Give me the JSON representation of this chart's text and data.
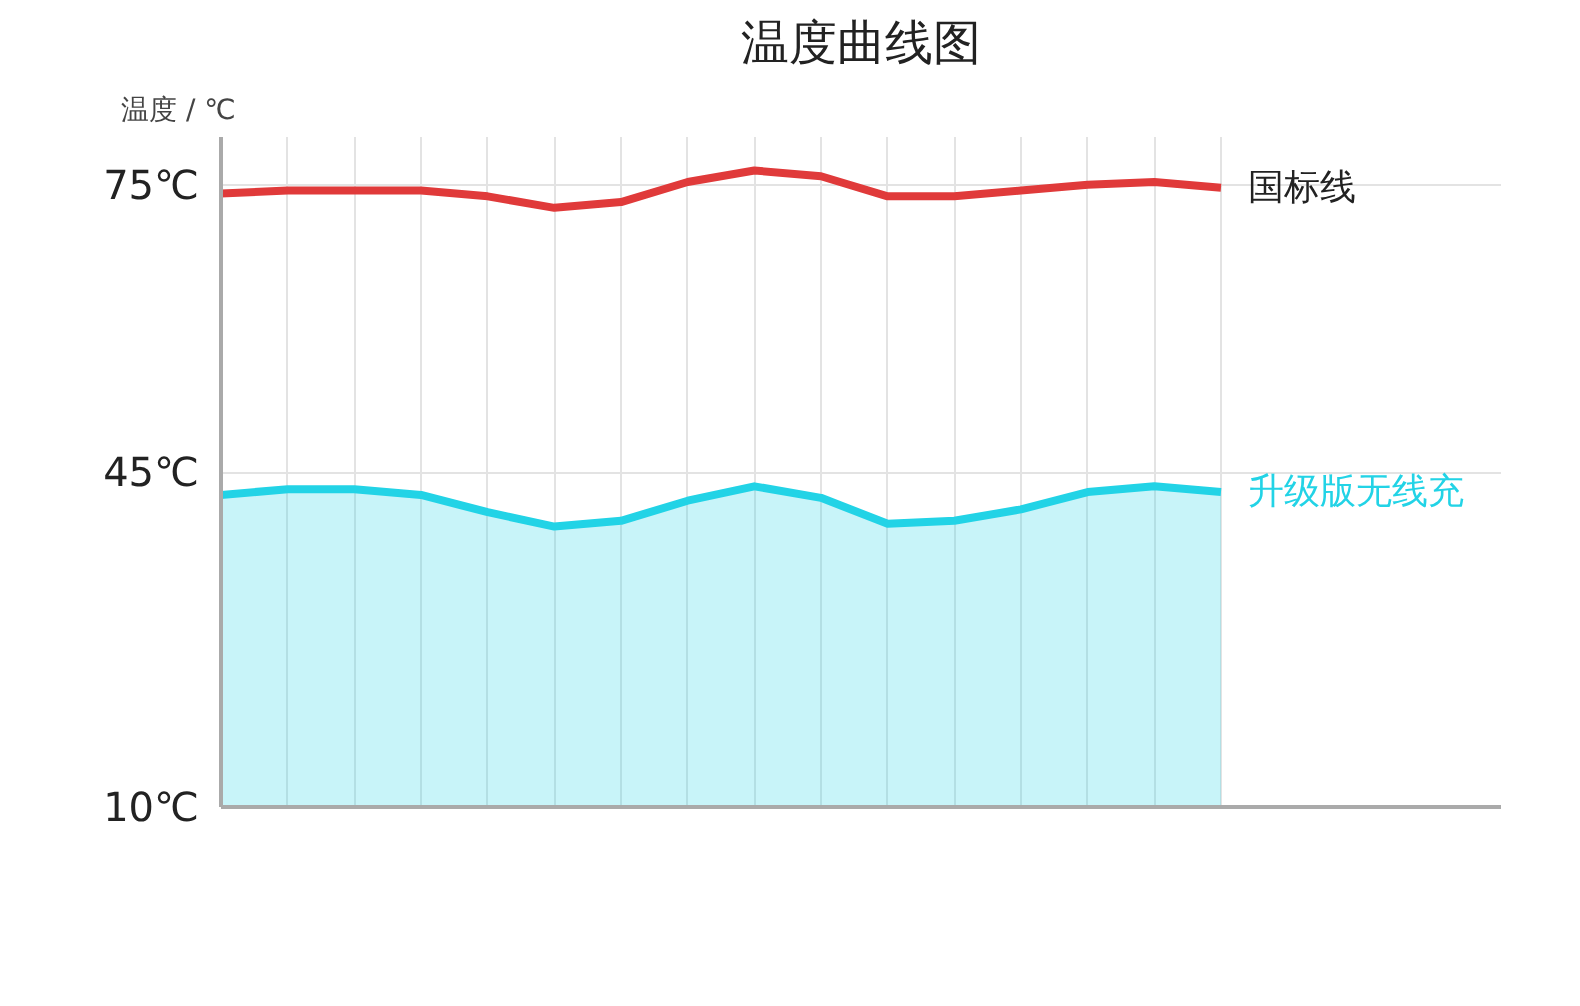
{
  "chart_data": {
    "type": "line",
    "title": "温度曲线图",
    "ylabel": "温度 / ℃",
    "categories": [
      null,
      null,
      null,
      null,
      null,
      null,
      null,
      null,
      null,
      null,
      null,
      null,
      null,
      null,
      null,
      null
    ],
    "series": [
      {
        "name": "国标线",
        "color": "#e03a3a",
        "values": [
          74.1,
          74.4,
          74.4,
          74.4,
          73.8,
          72.6,
          73.2,
          75.3,
          76.5,
          75.9,
          73.8,
          73.8,
          74.4,
          75,
          75.3,
          74.7
        ]
      },
      {
        "name": "升级版无线充",
        "type": "area",
        "color": "#22d3e6",
        "values": [
          42.6,
          43.2,
          43.2,
          42.6,
          40.8,
          39.3,
          39.9,
          42,
          43.5,
          42.3,
          39.6,
          39.9,
          41.1,
          42.9,
          43.5,
          42.9
        ]
      }
    ],
    "ylim": [
      10,
      80
    ],
    "yticks": [
      {
        "value": 10,
        "label": "10℃"
      },
      {
        "value": 45,
        "label": "45℃"
      },
      {
        "value": 75,
        "label": "75℃"
      }
    ],
    "grid": true,
    "legend": false,
    "tick_labels": "y"
  }
}
